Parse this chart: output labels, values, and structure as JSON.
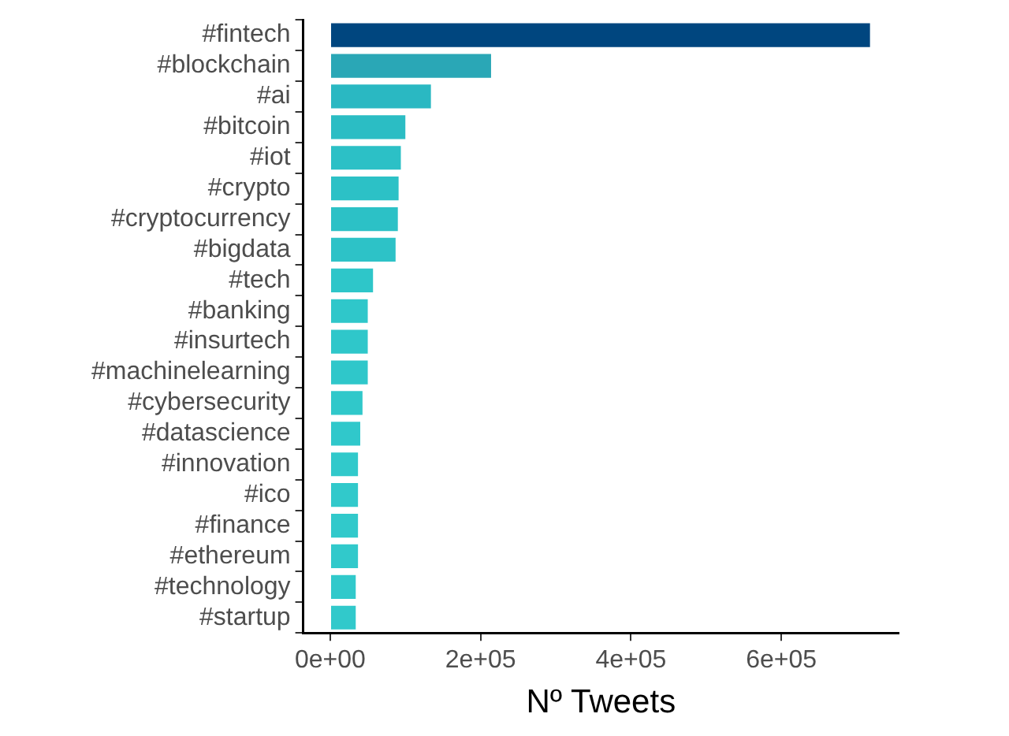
{
  "chart_data": {
    "type": "bar",
    "orientation": "horizontal",
    "xlabel": "Nº Tweets",
    "categories": [
      "#fintech",
      "#blockchain",
      "#ai",
      "#bitcoin",
      "#iot",
      "#crypto",
      "#cryptocurrency",
      "#bigdata",
      "#tech",
      "#banking",
      "#insurtech",
      "#machinelearning",
      "#cybersecurity",
      "#datascience",
      "#innovation",
      "#ico",
      "#finance",
      "#ethereum",
      "#technology",
      "#startup"
    ],
    "values": [
      720000,
      216000,
      136000,
      102000,
      96000,
      93000,
      92000,
      89000,
      59000,
      52000,
      52000,
      52000,
      45000,
      42000,
      39000,
      39000,
      39000,
      39000,
      36000,
      36000
    ],
    "colors": [
      "#00467f",
      "#2aa7b6",
      "#2ab8c2",
      "#2bbdc4",
      "#2cc0c6",
      "#2cc1c6",
      "#2cc1c6",
      "#2dc2c7",
      "#2ec6c9",
      "#2fc7ca",
      "#2fc7ca",
      "#2fc7ca",
      "#30c8ca",
      "#30c8cb",
      "#31c9cb",
      "#31c9cb",
      "#31c9cb",
      "#31c9cb",
      "#31c9cb",
      "#31c9cb"
    ],
    "xlim": [
      -36000,
      756000
    ],
    "xticks": [
      {
        "value": 0,
        "label": "0e+00"
      },
      {
        "value": 200000,
        "label": "2e+05"
      },
      {
        "value": 400000,
        "label": "4e+05"
      },
      {
        "value": 600000,
        "label": "6e+05"
      }
    ],
    "grid": false,
    "legend": false
  }
}
